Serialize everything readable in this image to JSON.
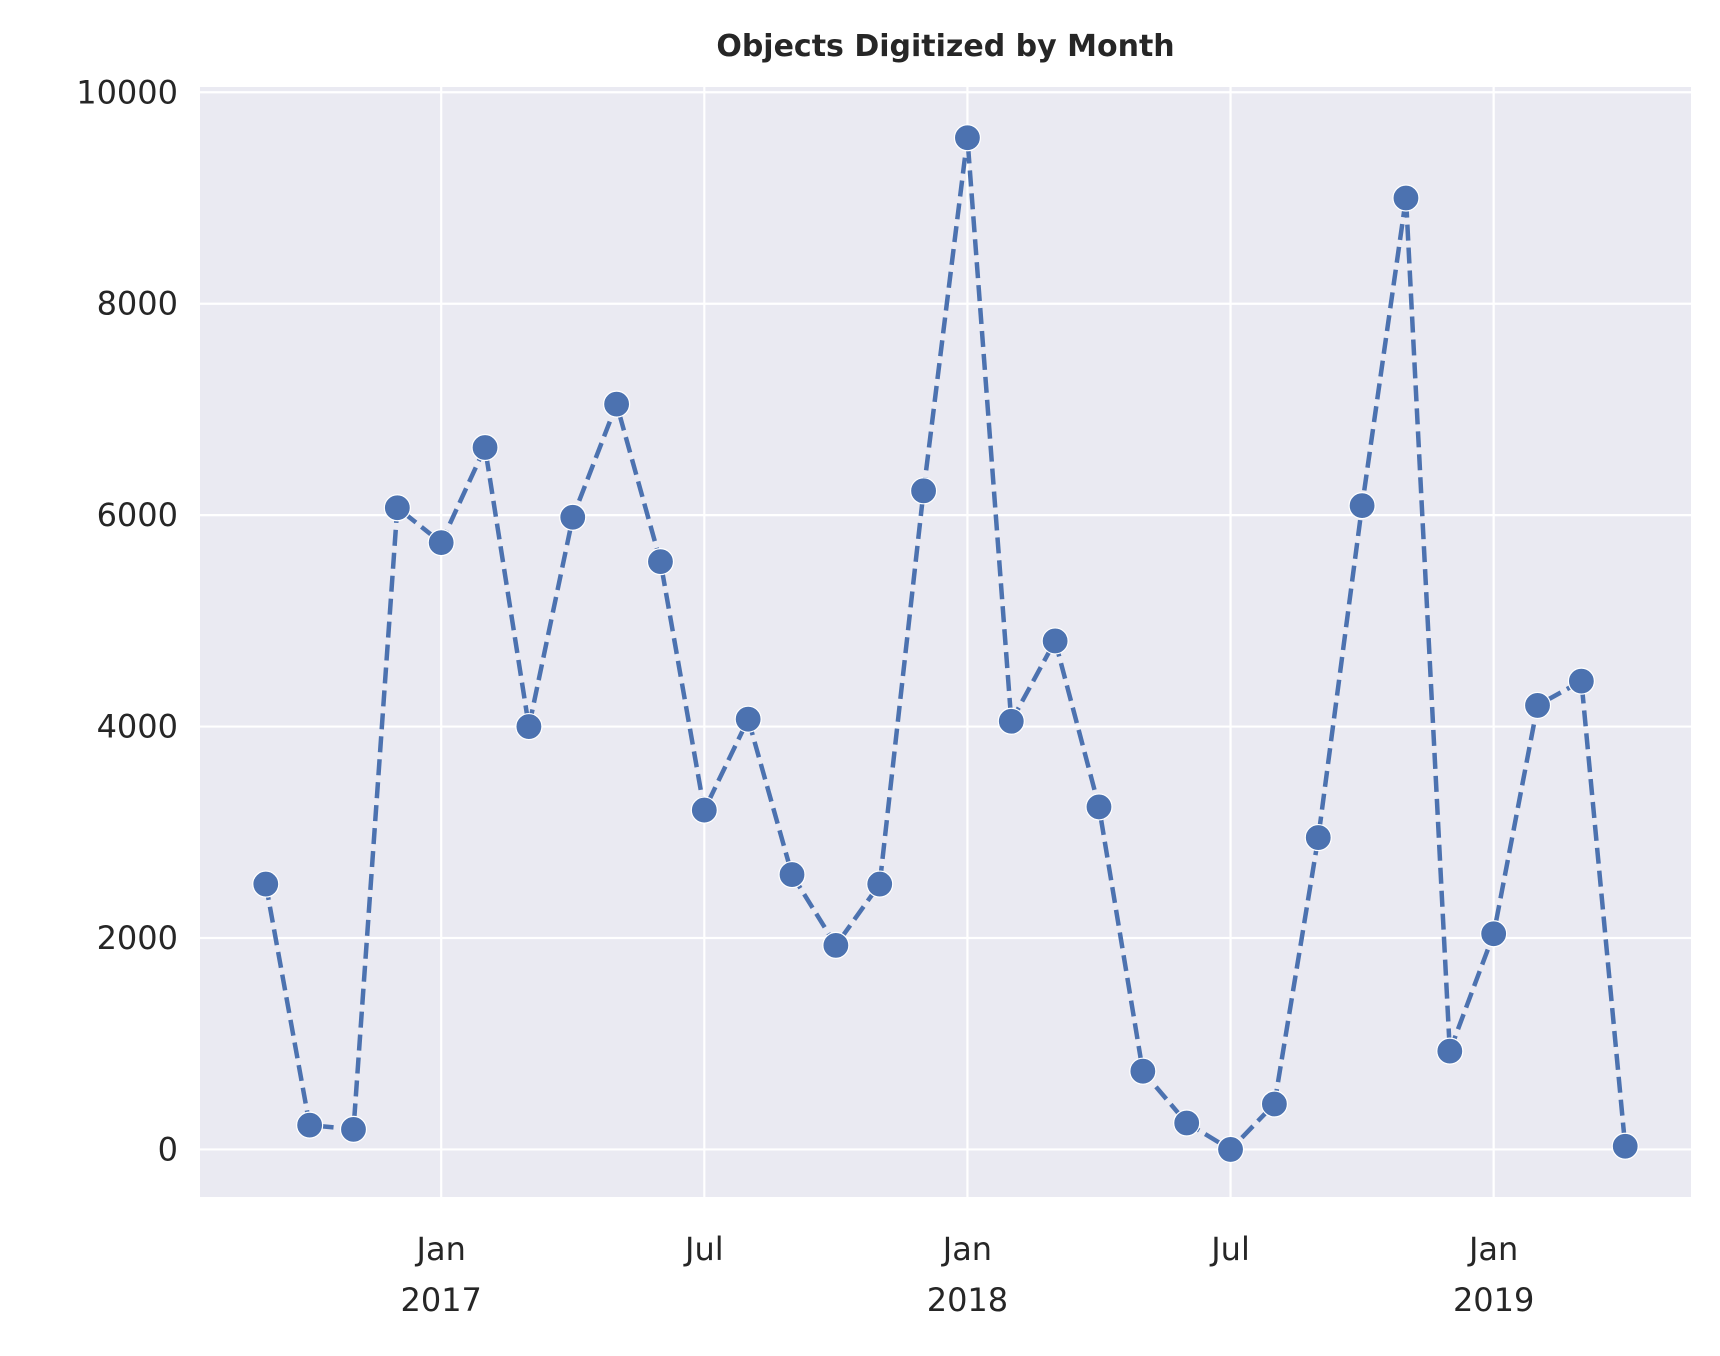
{
  "chart_data": {
    "type": "line",
    "title": "Objects Digitized by Month",
    "xlabel": "",
    "ylabel": "",
    "ylim": [
      -450,
      10050
    ],
    "grid": true,
    "line_style": "dashed",
    "marker": "circle",
    "series": [
      {
        "name": "Objects Digitized",
        "color": "#4c72b0",
        "x": [
          "2016-09",
          "2016-10",
          "2016-11",
          "2016-12",
          "2017-01",
          "2017-02",
          "2017-03",
          "2017-04",
          "2017-05",
          "2017-06",
          "2017-07",
          "2017-08",
          "2017-09",
          "2017-10",
          "2017-11",
          "2017-12",
          "2018-01",
          "2018-02",
          "2018-03",
          "2018-04",
          "2018-05",
          "2018-06",
          "2018-07",
          "2018-08",
          "2018-09",
          "2018-10",
          "2018-11",
          "2018-12",
          "2019-01",
          "2019-02",
          "2019-03",
          "2019-04"
        ],
        "values": [
          2510,
          230,
          190,
          6070,
          5740,
          6640,
          4000,
          5980,
          7050,
          5560,
          3210,
          4070,
          2600,
          1930,
          2510,
          6230,
          9570,
          4050,
          4810,
          3240,
          740,
          250,
          0,
          430,
          2950,
          6090,
          9000,
          930,
          2040,
          4200,
          4430,
          30
        ]
      }
    ],
    "yticks": [
      "0",
      "2000",
      "4000",
      "6000",
      "8000",
      "10000"
    ],
    "xticks": [
      {
        "month": "2017-01",
        "line1": "Jan",
        "line2": "2017"
      },
      {
        "month": "2017-07",
        "line1": "Jul",
        "line2": ""
      },
      {
        "month": "2018-01",
        "line1": "Jan",
        "line2": "2018"
      },
      {
        "month": "2018-07",
        "line1": "Jul",
        "line2": ""
      },
      {
        "month": "2019-01",
        "line1": "Jan",
        "line2": "2019"
      }
    ],
    "colors": {
      "plot_bg": "#eaeaf2",
      "grid": "#ffffff",
      "text": "#262626"
    }
  }
}
